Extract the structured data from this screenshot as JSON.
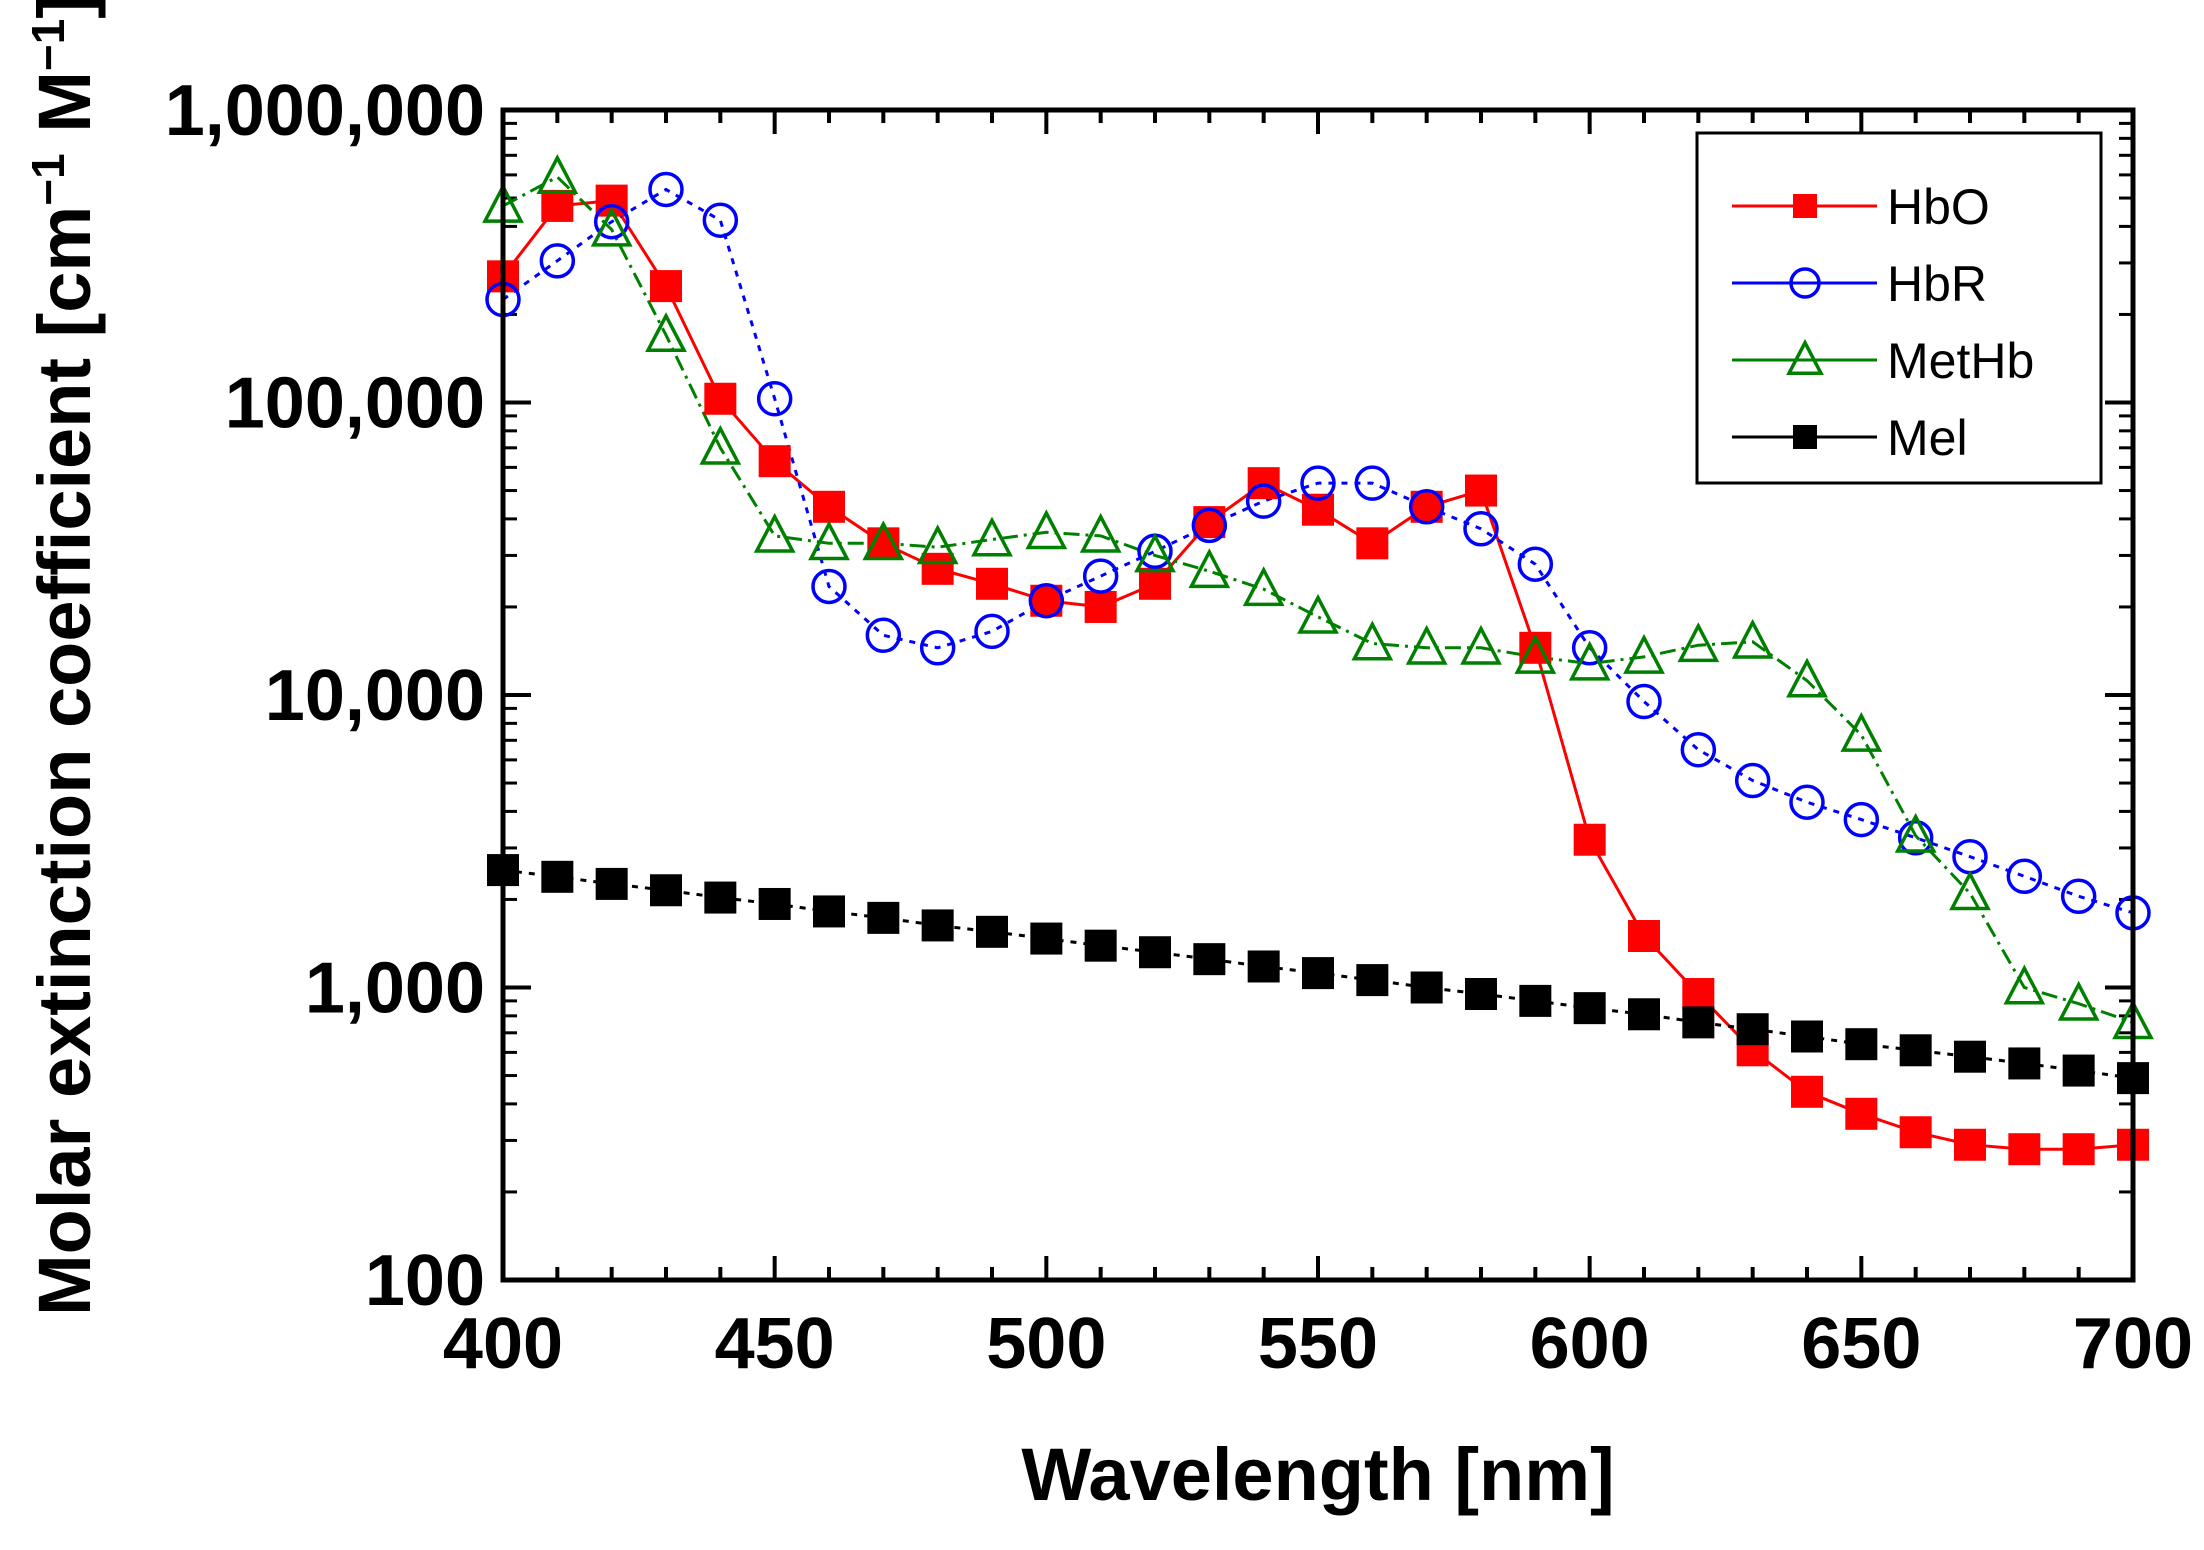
{
  "chart_data": {
    "type": "line",
    "title": "",
    "xlabel": "Wavelength [nm]",
    "ylabel": "Molar extinction coefficient [cm",
    "ylabel_sup1": "−1",
    "ylabel_mid": " M",
    "ylabel_sup2": "−1",
    "ylabel_end": "]",
    "xlim": [
      400,
      700
    ],
    "ylim": [
      100,
      1000000
    ],
    "yscale": "log",
    "x_ticks": [
      400,
      450,
      500,
      550,
      600,
      650,
      700
    ],
    "x_tick_labels": [
      "400",
      "450",
      "500",
      "550",
      "600",
      "650",
      "700"
    ],
    "y_ticks": [
      100,
      1000,
      10000,
      100000,
      1000000
    ],
    "y_tick_labels": [
      "100",
      "1,000",
      "10,000",
      "100,000",
      "1,000,000"
    ],
    "legend_position": "top-right",
    "x": [
      400,
      410,
      420,
      430,
      440,
      450,
      460,
      470,
      480,
      490,
      500,
      510,
      520,
      530,
      540,
      550,
      560,
      570,
      580,
      590,
      600,
      610,
      620,
      630,
      640,
      650,
      660,
      670,
      680,
      690,
      700
    ],
    "series": [
      {
        "name": "HbO",
        "color": "#ff0000",
        "marker": "square-filled",
        "line": "solid",
        "values": [
          270000,
          470000,
          490000,
          250000,
          103000,
          63000,
          44000,
          33000,
          27000,
          24000,
          21000,
          20000,
          24000,
          39000,
          53000,
          43000,
          33000,
          44000,
          50000,
          14500,
          3200,
          1500,
          950,
          610,
          440,
          370,
          320,
          290,
          280,
          280,
          290
        ]
      },
      {
        "name": "HbR",
        "color": "#0000ff",
        "marker": "circle-open",
        "line": "dash",
        "values": [
          225000,
          305000,
          415000,
          535000,
          420000,
          103000,
          23500,
          16000,
          14500,
          16500,
          21000,
          25500,
          31000,
          38000,
          46000,
          53000,
          53000,
          44000,
          37000,
          28000,
          14500,
          9500,
          6500,
          5100,
          4300,
          3750,
          3250,
          2800,
          2400,
          2050,
          1800
        ]
      },
      {
        "name": "MetHb",
        "color": "#008000",
        "marker": "triangle-open",
        "line": "dashdot",
        "values": [
          470000,
          590000,
          390000,
          170000,
          70000,
          35000,
          33000,
          33000,
          32000,
          34000,
          36000,
          35000,
          30000,
          26500,
          23000,
          18500,
          15000,
          14500,
          14500,
          13500,
          12800,
          13500,
          14800,
          15200,
          11200,
          7300,
          3300,
          2100,
          1000,
          880,
          760
        ]
      },
      {
        "name": "Mel",
        "color": "#000000",
        "marker": "square-filled",
        "line": "dash",
        "values": [
          2520,
          2390,
          2260,
          2150,
          2030,
          1930,
          1820,
          1730,
          1630,
          1550,
          1470,
          1390,
          1320,
          1250,
          1180,
          1120,
          1060,
          1000,
          950,
          900,
          850,
          810,
          760,
          720,
          680,
          640,
          610,
          580,
          550,
          520,
          490
        ]
      }
    ]
  }
}
